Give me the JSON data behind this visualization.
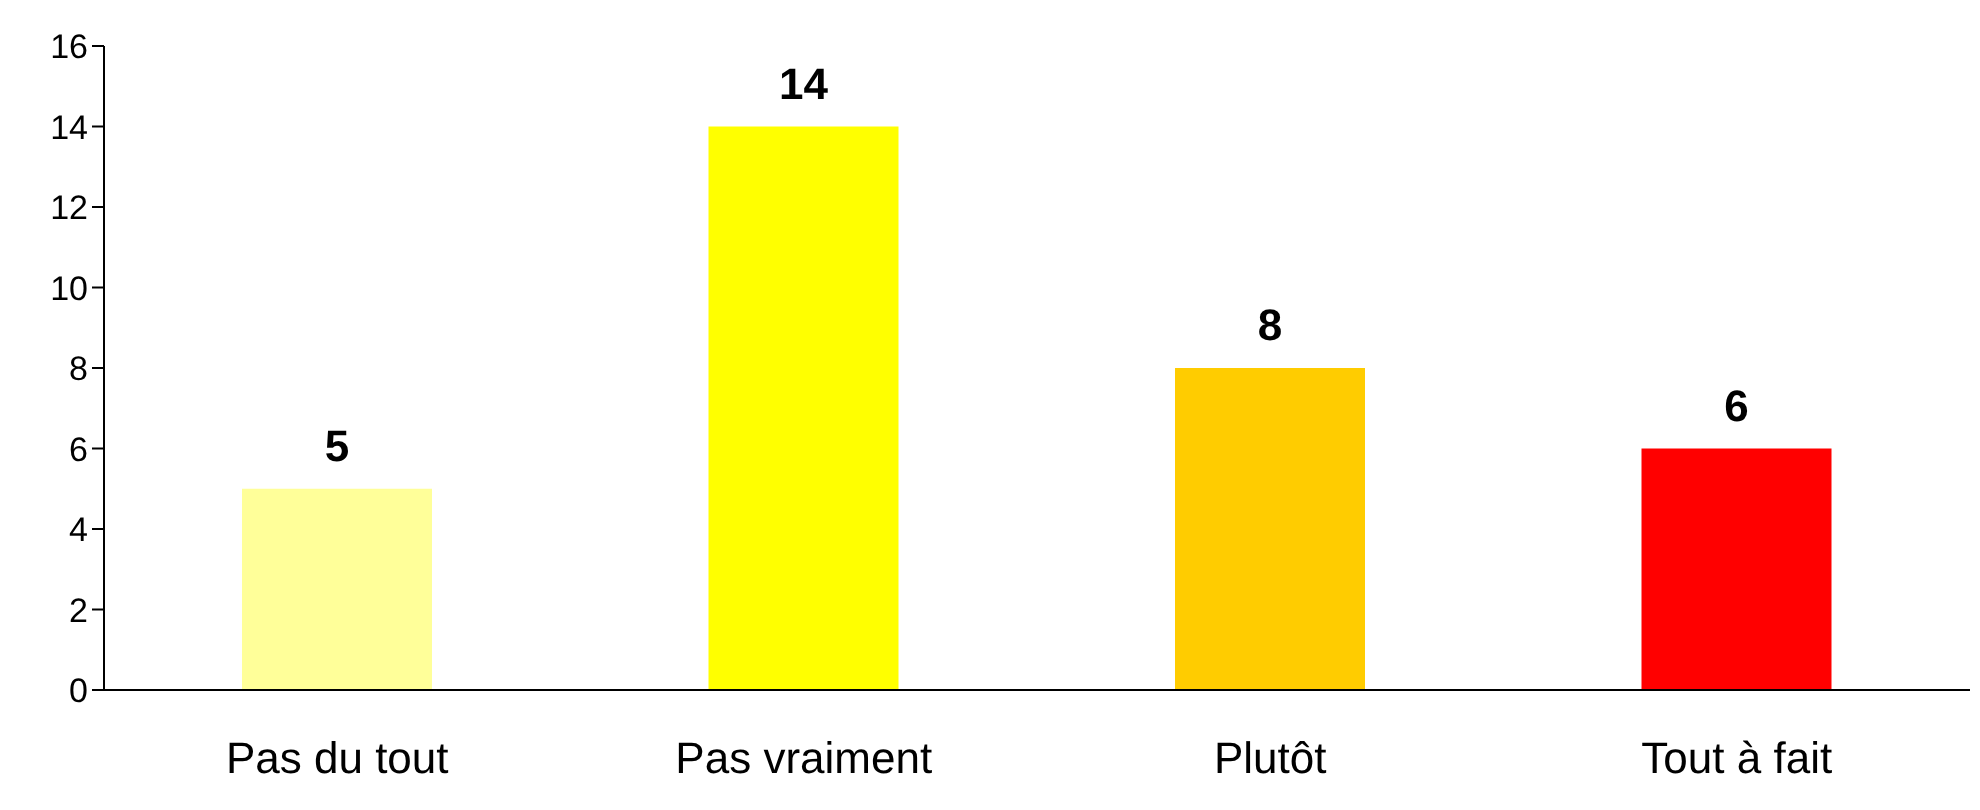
{
  "chart_data": {
    "type": "bar",
    "categories": [
      "Pas du tout",
      "Pas vraiment",
      "Plutôt",
      "Tout à fait"
    ],
    "values": [
      5,
      14,
      8,
      6
    ],
    "colors": [
      "#ffff99",
      "#ffff00",
      "#ffcc00",
      "#ff0000"
    ],
    "ylim": [
      0,
      16
    ],
    "yticks": [
      0,
      2,
      4,
      6,
      8,
      10,
      12,
      14,
      16
    ],
    "grid": false,
    "data_labels": true
  }
}
